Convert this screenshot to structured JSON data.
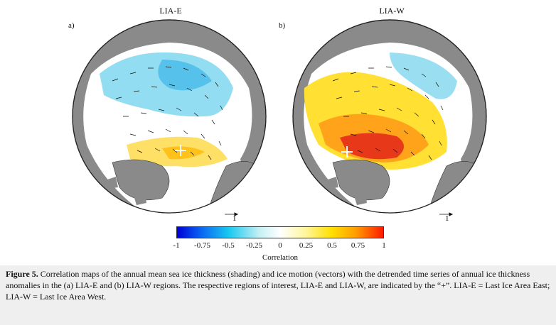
{
  "panels": [
    {
      "letter": "a)",
      "title": "LIA-E",
      "scale_label": "1"
    },
    {
      "letter": "b)",
      "title": "LIA-W",
      "scale_label": "1"
    }
  ],
  "colorbar": {
    "ticks": [
      "-1",
      "-0.75",
      "-0.5",
      "-0.25",
      "0",
      "0.25",
      "0.5",
      "0.75",
      "1"
    ],
    "label": "Correlation",
    "colors": [
      "#0000d8",
      "#18c8f0",
      "#ffffff",
      "#ffe000",
      "#ff1a00"
    ]
  },
  "caption": {
    "figure_label": "Figure 5.",
    "text": " Correlation maps of the annual mean sea ice thickness (shading) and ice motion (vectors) with the detrended time series of annual ice thickness anomalies in the (a) LIA-E and (b) LIA-W regions. The respective regions of interest, LIA-E and LIA-W, are indicated by the “+”. LIA-E = Last Ice Area East; LIA-W = Last Ice Area West."
  },
  "colors": {
    "land": "#8a8a8a",
    "ocean": "#ffffff",
    "marker": "#ffffff"
  }
}
